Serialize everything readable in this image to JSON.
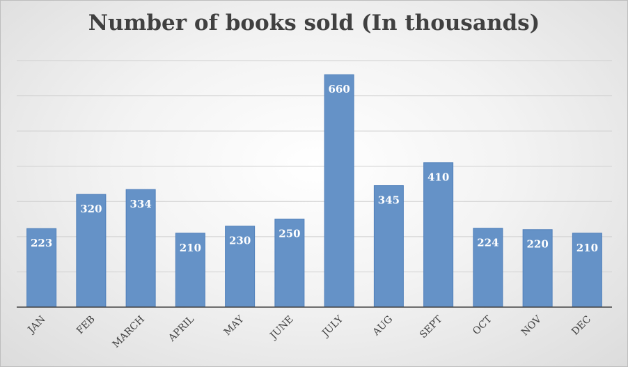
{
  "chart_data": {
    "type": "bar",
    "title": "Number of books sold (In thousands)",
    "xlabel": "",
    "ylabel": "",
    "categories": [
      "JAN",
      "FEB",
      "MARCH",
      "APRIL",
      "MAY",
      "JUNE",
      "JULY",
      "AUG",
      "SEPT",
      "OCT",
      "NOV",
      "DEC"
    ],
    "values": [
      223,
      320,
      334,
      210,
      230,
      250,
      660,
      345,
      410,
      224,
      220,
      210
    ],
    "ylim": [
      0,
      700
    ],
    "y_axis_labels_shown": false,
    "grid": true,
    "data_labels": true,
    "legend": "none",
    "colors": {
      "bar_fill": "#6592c7",
      "bar_stroke": "#4f7fba",
      "gridline": "#cfcfcf",
      "baseline": "#404040",
      "title": "#404040",
      "bar_label": "#ffffff"
    }
  }
}
